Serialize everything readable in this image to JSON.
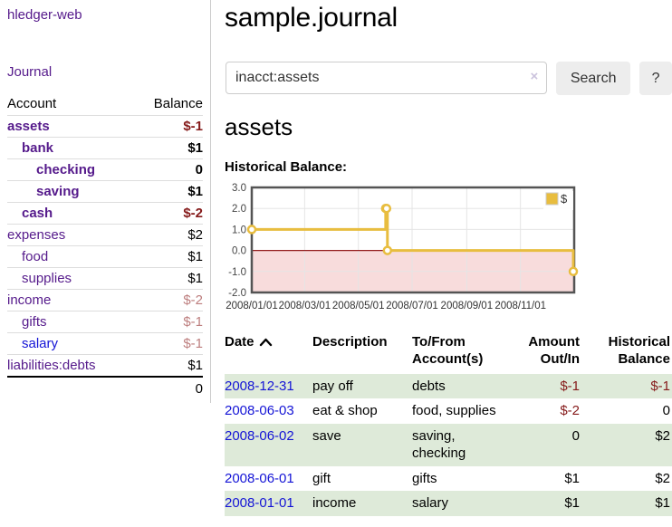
{
  "sidebar": {
    "brand": "hledger-web",
    "journal_label": "Journal",
    "accounts_table": {
      "headers": {
        "account": "Account",
        "balance": "Balance"
      },
      "rows": [
        {
          "name": "assets",
          "balance": "$-1",
          "indent": 1,
          "bold": true,
          "balance_tone": "negative",
          "link_tone": "purple"
        },
        {
          "name": "bank",
          "balance": "$1",
          "indent": 2,
          "bold": true,
          "balance_tone": "normal",
          "link_tone": "purple"
        },
        {
          "name": "checking",
          "balance": "0",
          "indent": 3,
          "bold": true,
          "balance_tone": "normal",
          "link_tone": "purple"
        },
        {
          "name": "saving",
          "balance": "$1",
          "indent": 3,
          "bold": true,
          "balance_tone": "normal",
          "link_tone": "purple"
        },
        {
          "name": "cash",
          "balance": "$-2",
          "indent": 2,
          "bold": true,
          "balance_tone": "negative",
          "link_tone": "purple"
        },
        {
          "name": "expenses",
          "balance": "$2",
          "indent": 1,
          "bold": false,
          "balance_tone": "normal",
          "link_tone": "purple"
        },
        {
          "name": "food",
          "balance": "$1",
          "indent": 2,
          "bold": false,
          "balance_tone": "normal",
          "link_tone": "purple"
        },
        {
          "name": "supplies",
          "balance": "$1",
          "indent": 2,
          "bold": false,
          "balance_tone": "normal",
          "link_tone": "purple"
        },
        {
          "name": "income",
          "balance": "$-2",
          "indent": 1,
          "bold": false,
          "balance_tone": "negative-muted",
          "link_tone": "purple"
        },
        {
          "name": "gifts",
          "balance": "$-1",
          "indent": 2,
          "bold": false,
          "balance_tone": "negative-muted",
          "link_tone": "purple"
        },
        {
          "name": "salary",
          "balance": "$-1",
          "indent": 2,
          "bold": false,
          "balance_tone": "negative-muted",
          "link_tone": "blue"
        },
        {
          "name": "liabilities:debts",
          "balance": "$1",
          "indent": 1,
          "bold": false,
          "balance_tone": "normal",
          "link_tone": "purple"
        }
      ],
      "total": "0"
    }
  },
  "header": {
    "title": "sample.journal"
  },
  "search": {
    "query": "inacct:assets",
    "clear_icon": "×",
    "button_label": "Search",
    "help_label": "?"
  },
  "account_page": {
    "heading": "assets",
    "chart_label": "Historical Balance:"
  },
  "chart_data": {
    "type": "line",
    "step": true,
    "title": "Historical Balance:",
    "x_range": [
      "2008-01-01",
      "2009-01-01"
    ],
    "ylim": [
      -2,
      3
    ],
    "y_ticks": [
      3,
      2,
      1,
      0,
      -1,
      -2
    ],
    "x_ticks": [
      "2008/01/01",
      "2008/03/01",
      "2008/05/01",
      "2008/07/01",
      "2008/09/01",
      "2008/11/01"
    ],
    "series": [
      {
        "name": "$",
        "points": [
          {
            "date": "2008-01-01",
            "value": 1
          },
          {
            "date": "2008-06-01",
            "value": 2
          },
          {
            "date": "2008-06-02",
            "value": 2
          },
          {
            "date": "2008-06-03",
            "value": 0
          },
          {
            "date": "2008-12-31",
            "value": -1
          }
        ]
      }
    ],
    "legend": {
      "label": "$",
      "position": "top-right"
    },
    "grid": true,
    "negative_region_shaded": true
  },
  "register_table": {
    "headers": {
      "date": "Date",
      "description": "Description",
      "tofrom": "To/From Account(s)",
      "amount": "Amount Out/In",
      "balance": "Historical Balance"
    },
    "sort": {
      "column": "date",
      "direction": "asc",
      "icon": "chevron-up-icon"
    },
    "rows": [
      {
        "date": "2008-12-31",
        "description": "pay off",
        "accounts": "debts",
        "amount": "$-1",
        "balance": "$-1"
      },
      {
        "date": "2008-06-03",
        "description": "eat & shop",
        "accounts": "food, supplies",
        "amount": "$-2",
        "balance": "0"
      },
      {
        "date": "2008-06-02",
        "description": "save",
        "accounts": "saving, checking",
        "amount": "0",
        "balance": "$2"
      },
      {
        "date": "2008-06-01",
        "description": "gift",
        "accounts": "gifts",
        "amount": "$1",
        "balance": "$2"
      },
      {
        "date": "2008-01-01",
        "description": "income",
        "accounts": "salary",
        "amount": "$1",
        "balance": "$1"
      }
    ]
  },
  "colors": {
    "link_purple": "#551a8b",
    "link_blue": "#1414d6",
    "negative": "#851a1a",
    "negative_muted": "#bd7e7e",
    "row_stripe_green": "#deead9",
    "chart_line": "#e8bd3f",
    "chart_fill_negative": "#f8dcdc",
    "chart_zero_line": "#941f1f",
    "chart_grid": "#e5e5e5",
    "chart_border": "#545454",
    "button_bg": "#ededed",
    "input_border": "#cccccc"
  }
}
